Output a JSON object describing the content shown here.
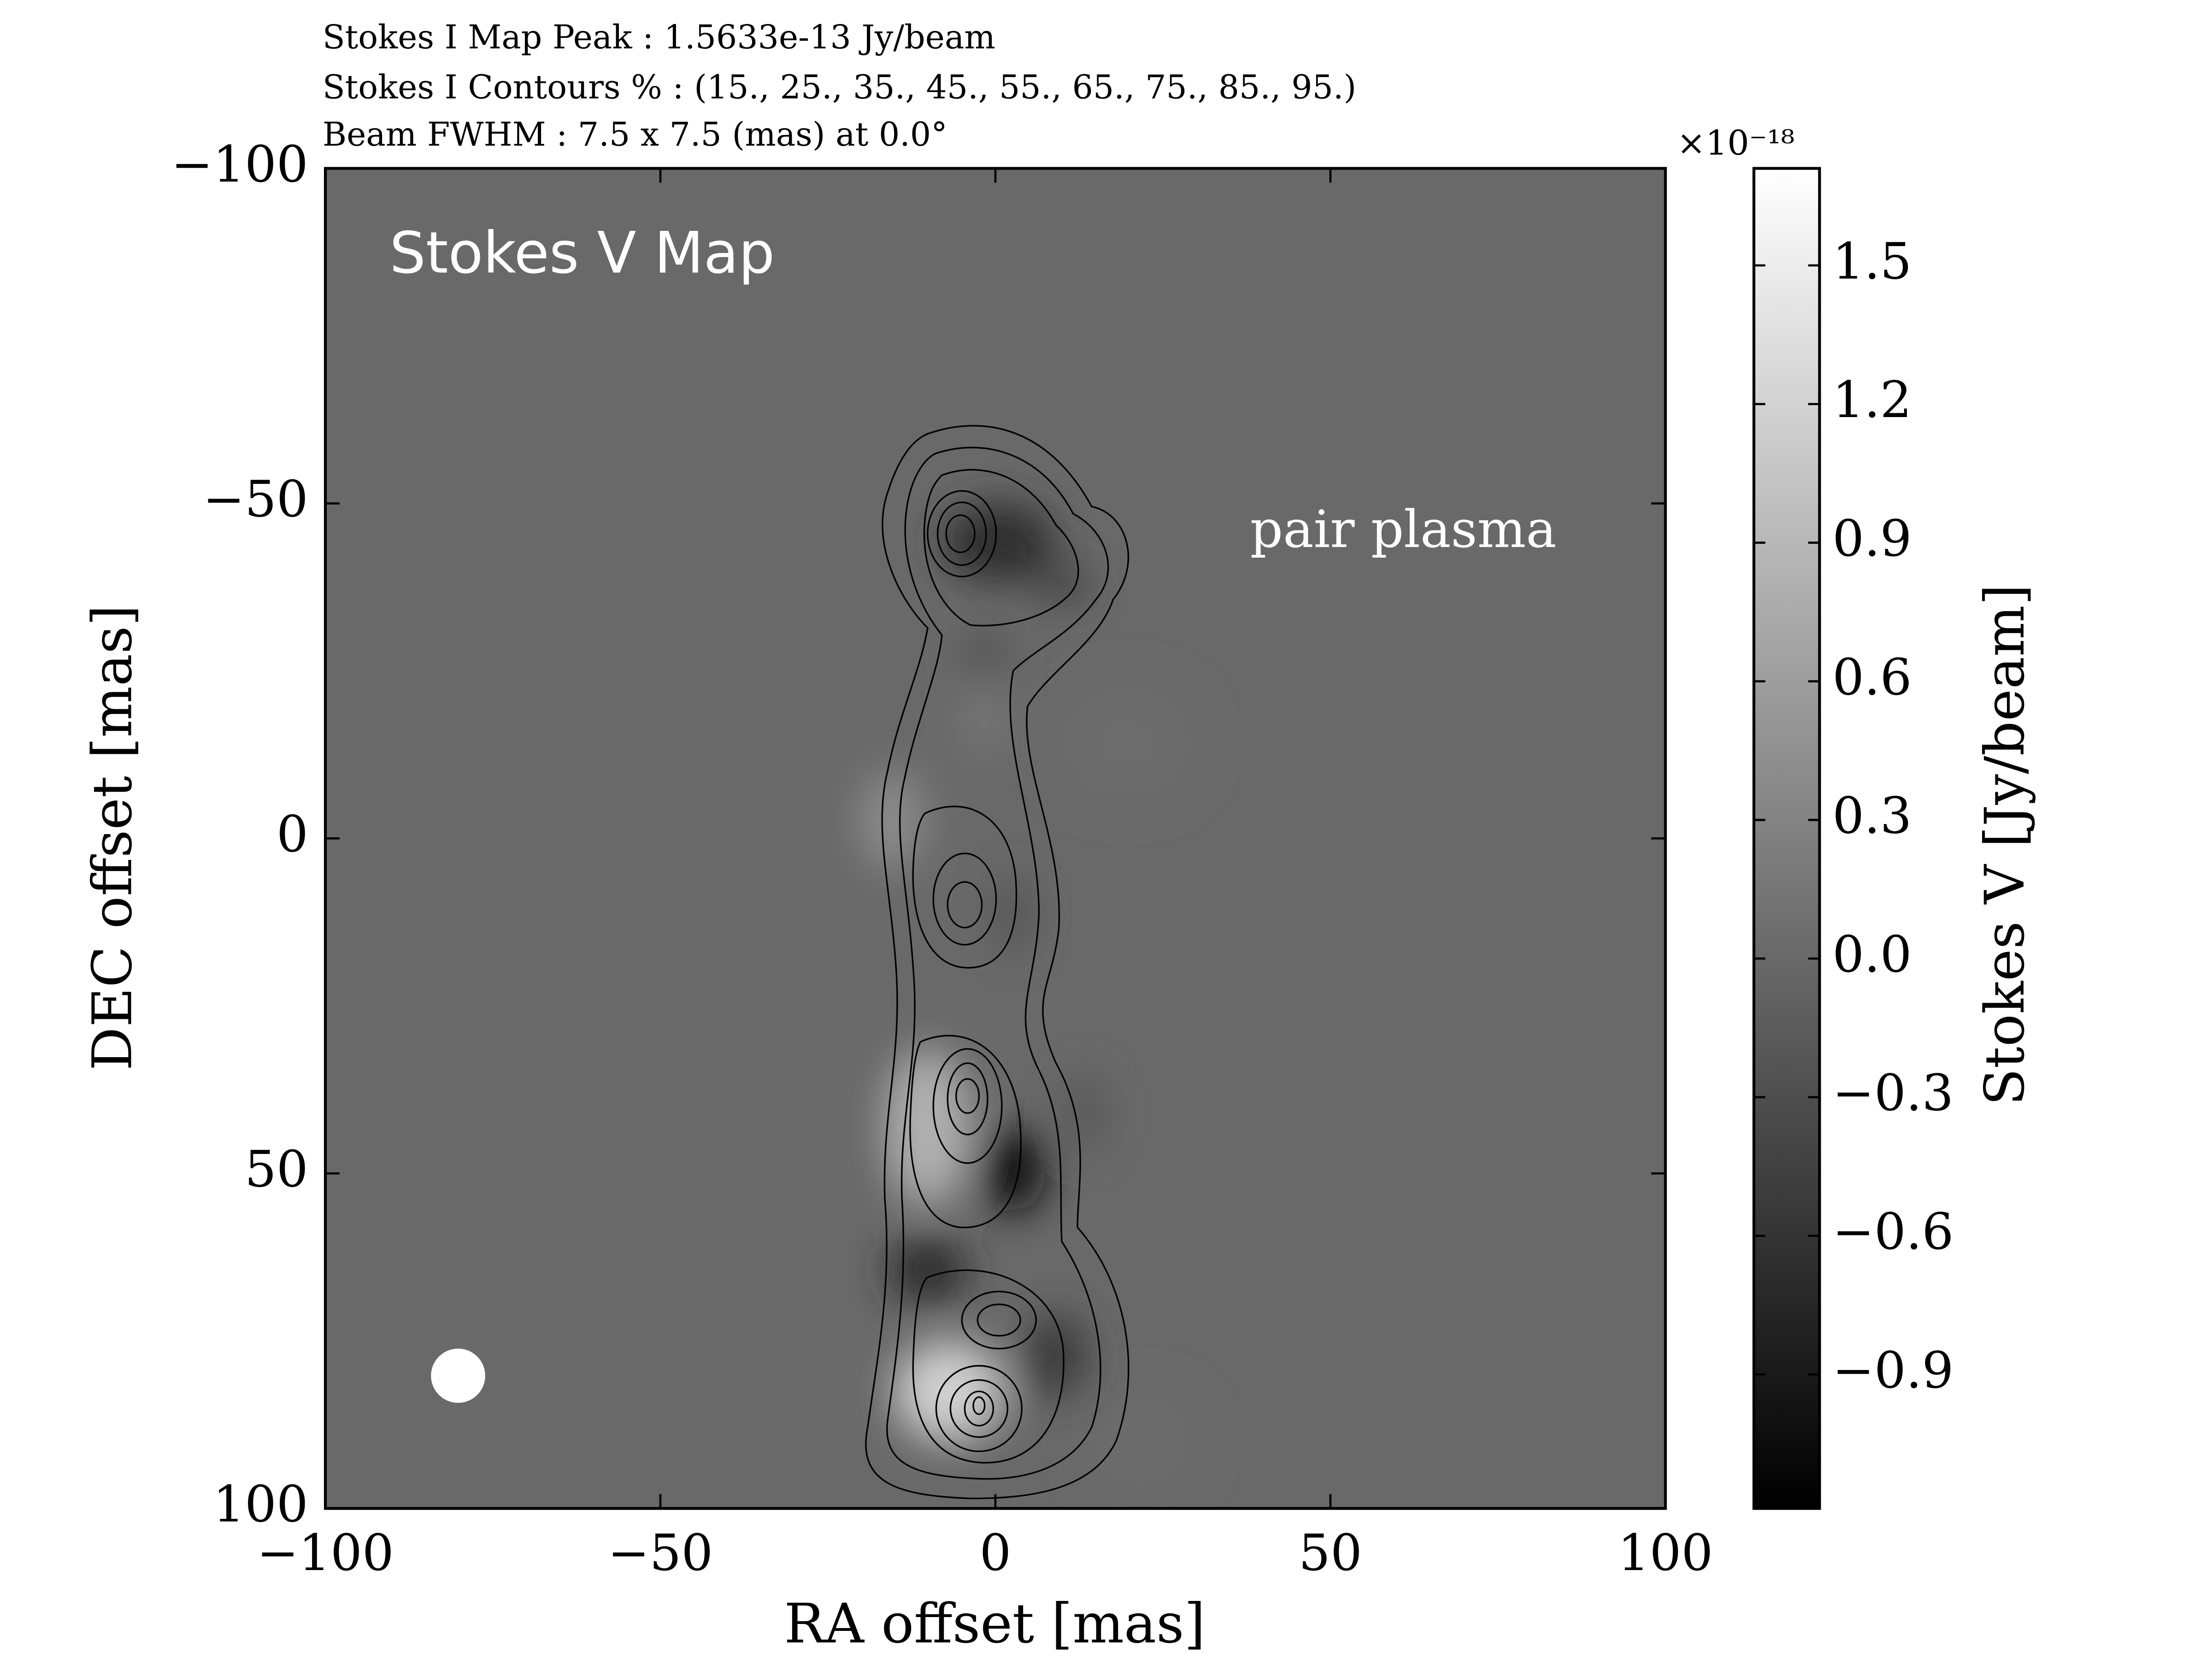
{
  "chart_data": {
    "type": "image",
    "title_lines": [
      "Stokes I Map Peak :  1.5633e-13 Jy/beam",
      "Stokes I Contours % :  (15., 25., 35., 45., 55., 65., 75., 85., 95.)",
      "Beam FWHM :  7.5 x 7.5 (mas) at 0.0°"
    ],
    "annotations": [
      "Stokes V Map",
      "pair plasma"
    ],
    "xlabel": "RA offset [mas]",
    "ylabel": "DEC offset [mas]",
    "xlim": [
      -100,
      100
    ],
    "xticks": [
      {
        "value": -100,
        "label": "−100"
      },
      {
        "value": -50,
        "label": "−50"
      },
      0,
      50,
      100
    ],
    "ylim": [
      100,
      -100
    ],
    "yticks": [
      {
        "value": -100,
        "label": "−100"
      },
      {
        "value": -50,
        "label": "−50"
      },
      0,
      50,
      100
    ],
    "colorbar": {
      "label": "Stokes V [Jy/beam]",
      "offset_text": "×10⁻¹⁸",
      "clim": [
        -1.19,
        1.71
      ],
      "ticks": [
        {
          "value": -0.9,
          "label": "−0.9"
        },
        {
          "value": -0.6,
          "label": "−0.6"
        },
        {
          "value": -0.3,
          "label": "−0.3"
        },
        {
          "value": 0,
          "label": "0.0"
        },
        0.3,
        0.6,
        0.9,
        1.2,
        1.5
      ]
    }
  }
}
